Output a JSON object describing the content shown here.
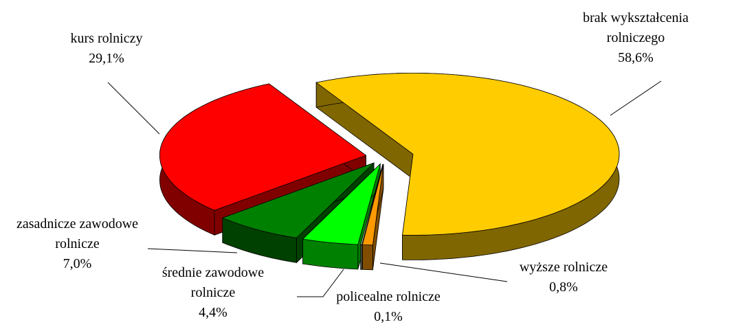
{
  "chart_data": {
    "type": "pie",
    "categories": [
      "brak wykształcenia rolniczego",
      "wyższe rolnicze",
      "policealne rolnicze",
      "średnie zawodowe rolnicze",
      "zasadnicze zawodowe rolnicze",
      "kurs rolniczy"
    ],
    "values": [
      58.6,
      0.8,
      0.1,
      4.4,
      7.0,
      29.1
    ],
    "value_labels": [
      "58,6%",
      "0,8%",
      "0,1%",
      "4,4%",
      "7,0%",
      "29,1%"
    ],
    "colors": [
      "#ffcc00",
      "#ff9900",
      "#ccffcc",
      "#00ff00",
      "#008000",
      "#ff0000"
    ]
  }
}
